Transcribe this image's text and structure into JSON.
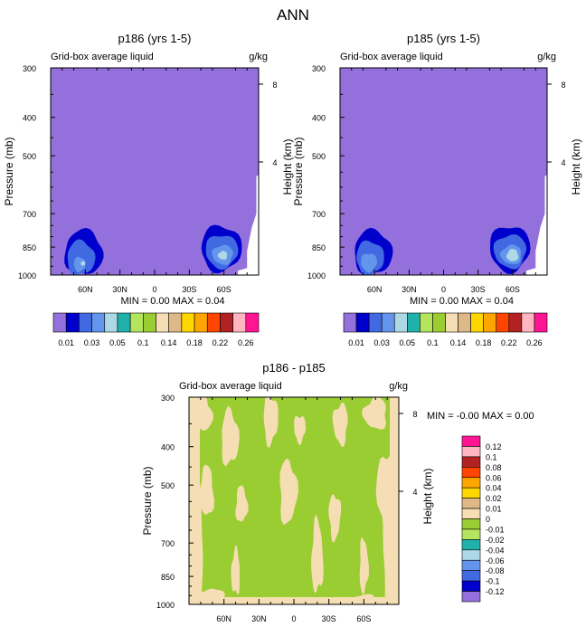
{
  "figure_title": "ANN",
  "colors": {
    "lavender": "#9370DB",
    "dark_blue": "#0000CD",
    "royal_blue": "#4169E1",
    "cornflower": "#6495ED",
    "light_blue": "#ADD8E6",
    "teal": "#20B2AA",
    "yellow_green": "#9ACD32",
    "light_green": "#B5E55E",
    "wheat": "#F5DEB3",
    "tan": "#DEB887",
    "gold": "#FFD700",
    "orange": "#FFA500",
    "orange_red": "#FF4500",
    "firebrick": "#B22222",
    "pink": "#FFB6C1",
    "deep_pink": "#FF1493"
  },
  "chart_data": [
    {
      "type": "heatmap",
      "title": "p186 (yrs 1-5)",
      "left_label": "Grid-box average liquid",
      "units": "g/kg",
      "ylabel": "Pressure (mb)",
      "ylabel_right": "Height (km)",
      "yticks": [
        "300",
        "400",
        "500",
        "700",
        "850",
        "1000"
      ],
      "yticks_right": [
        "8",
        "4"
      ],
      "xticks": [
        "60N",
        "30N",
        "0",
        "30S",
        "60S"
      ],
      "ylim": [
        1000,
        300
      ],
      "stats": "MIN =   0.00  MAX =   0.04",
      "fill_color": "#9370DB",
      "max_feature": "nh_peak_0_04",
      "contours": {
        "NH": [
          {
            "level": 0.01,
            "color": "#0000CD",
            "lat": [
              -78,
              -45
            ],
            "p": [
              770,
              1000
            ]
          },
          {
            "level": 0.02,
            "color": "#4169E1",
            "lat": [
              -76,
              -52
            ],
            "p": [
              820,
              1000
            ]
          },
          {
            "level": 0.03,
            "color": "#6495ED",
            "lat": [
              -70,
              -60
            ],
            "p": [
              900,
              980
            ]
          }
        ],
        "SH": [
          {
            "level": 0.01,
            "color": "#0000CD",
            "lat": [
              40,
              75
            ],
            "p": [
              750,
              980
            ]
          },
          {
            "level": 0.02,
            "color": "#4169E1",
            "lat": [
              44,
              72
            ],
            "p": [
              790,
              960
            ]
          },
          {
            "level": 0.03,
            "color": "#6495ED",
            "lat": [
              50,
              68
            ],
            "p": [
              840,
              940
            ]
          },
          {
            "level": 0.04,
            "color": "#ADD8E6",
            "lat": [
              55,
              63
            ],
            "p": [
              870,
              915
            ]
          }
        ]
      }
    },
    {
      "type": "heatmap",
      "title": "p185 (yrs 1-5)",
      "left_label": "Grid-box average liquid",
      "units": "g/kg",
      "ylabel": "Pressure (mb)",
      "ylabel_right": "Height (km)",
      "yticks": [
        "300",
        "400",
        "500",
        "700",
        "850",
        "1000"
      ],
      "yticks_right": [
        "8",
        "4"
      ],
      "xticks": [
        "60N",
        "30N",
        "0",
        "30S",
        "60S"
      ],
      "ylim": [
        1000,
        300
      ],
      "stats": "MIN =   0.00  MAX =   0.04",
      "fill_color": "#9370DB",
      "max_feature": "sh_peak_0_04",
      "contours": {
        "NH": [
          {
            "level": 0.01,
            "color": "#0000CD",
            "lat": [
              -78,
              -45
            ],
            "p": [
              770,
              1000
            ]
          },
          {
            "level": 0.02,
            "color": "#4169E1",
            "lat": [
              -76,
              -52
            ],
            "p": [
              820,
              1000
            ]
          },
          {
            "level": 0.03,
            "color": "#6495ED",
            "lat": [
              -72,
              -58
            ],
            "p": [
              880,
              980
            ]
          }
        ],
        "SH": [
          {
            "level": 0.01,
            "color": "#0000CD",
            "lat": [
              40,
              75
            ],
            "p": [
              750,
              980
            ]
          },
          {
            "level": 0.02,
            "color": "#4169E1",
            "lat": [
              44,
              72
            ],
            "p": [
              790,
              960
            ]
          },
          {
            "level": 0.03,
            "color": "#6495ED",
            "lat": [
              50,
              68
            ],
            "p": [
              840,
              940
            ]
          },
          {
            "level": 0.04,
            "color": "#ADD8E6",
            "lat": [
              55,
              65
            ],
            "p": [
              860,
              925
            ]
          }
        ]
      }
    },
    {
      "type": "heatmap",
      "title": "p186 - p185",
      "left_label": "Grid-box average liquid",
      "units": "g/kg",
      "ylabel": "Pressure (mb)",
      "ylabel_right": "Height (km)",
      "yticks": [
        "300",
        "400",
        "500",
        "700",
        "850",
        "1000"
      ],
      "yticks_right": [
        "8",
        "4"
      ],
      "xticks": [
        "60N",
        "30N",
        "0",
        "30S",
        "60S"
      ],
      "ylim": [
        1000,
        300
      ],
      "stats": "MIN =  -0.00  MAX =   0.00",
      "fill_color": "#9ACD32",
      "description_levels": {
        "dominant": "-0.01 to 0",
        "secondary": "0 to 0.01"
      }
    }
  ],
  "colorbar_top": {
    "colors": [
      "#9370DB",
      "#0000CD",
      "#4169E1",
      "#6495ED",
      "#ADD8E6",
      "#20B2AA",
      "#B5E55E",
      "#9ACD32",
      "#F5DEB3",
      "#DEB887",
      "#FFD700",
      "#FFA500",
      "#FF4500",
      "#B22222",
      "#FFB6C1",
      "#FF1493"
    ],
    "labels": [
      "0.01",
      "0.03",
      "0.05",
      "0.1",
      "0.14",
      "0.18",
      "0.22",
      "0.26"
    ]
  },
  "colorbar_diff": {
    "colors": [
      "#FF1493",
      "#FFB6C1",
      "#B22222",
      "#FF4500",
      "#FFA500",
      "#FFD700",
      "#DEB887",
      "#F5DEB3",
      "#9ACD32",
      "#B5E55E",
      "#20B2AA",
      "#ADD8E6",
      "#6495ED",
      "#4169E1",
      "#0000CD",
      "#9370DB"
    ],
    "labels": [
      "0.12",
      "0.1",
      "0.08",
      "0.06",
      "0.04",
      "0.02",
      "0.01",
      "0",
      "-0.01",
      "-0.02",
      "-0.04",
      "-0.06",
      "-0.08",
      "-0.1",
      "-0.12"
    ]
  }
}
